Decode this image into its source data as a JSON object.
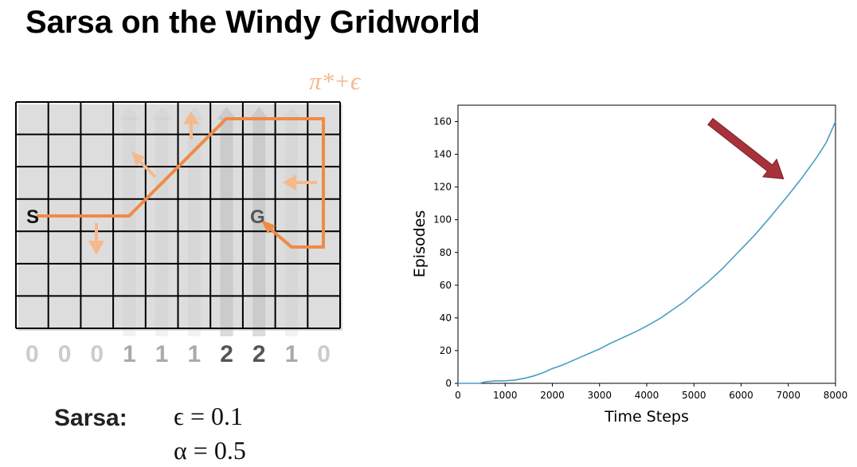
{
  "title": "Sarsa on the Windy Gridworld",
  "gridworld": {
    "columns": 10,
    "rows": 7,
    "wind": [
      0,
      0,
      0,
      1,
      1,
      1,
      2,
      2,
      1,
      0
    ],
    "start_label": "S",
    "goal_label": "G",
    "policy_label": "π*+ϵ",
    "colors": {
      "path": "#f08a45",
      "arrow": "#f5b98d",
      "wind_strong": "#555555",
      "wind_weak": "#aaaaaa",
      "wind_none": "#cccccc"
    }
  },
  "algorithm": {
    "name": "Sarsa:",
    "epsilon": "ϵ = 0.1",
    "alpha": "α = 0.5"
  },
  "chart_data": {
    "type": "line",
    "xlabel": "Time Steps",
    "ylabel": "Episodes",
    "xlim": [
      0,
      8000
    ],
    "ylim": [
      0,
      170
    ],
    "xticks": [
      0,
      1000,
      2000,
      3000,
      4000,
      5000,
      6000,
      7000,
      8000
    ],
    "yticks": [
      0,
      20,
      40,
      60,
      80,
      100,
      120,
      140,
      160
    ],
    "grid": false,
    "series": [
      {
        "color": "#4a9dc4",
        "x": [
          0,
          300,
          450,
          600,
          800,
          1000,
          1200,
          1400,
          1600,
          1800,
          2000,
          2200,
          2400,
          2600,
          2800,
          3000,
          3200,
          3500,
          3800,
          4000,
          4300,
          4600,
          4800,
          5000,
          5300,
          5600,
          5800,
          6000,
          6300,
          6600,
          6800,
          7000,
          7300,
          7600,
          7800,
          8000
        ],
        "y": [
          0,
          0,
          0,
          1,
          1.5,
          1.5,
          2,
          3,
          4.5,
          6.5,
          9,
          11,
          13.5,
          16,
          18.5,
          21,
          24,
          28,
          32,
          35,
          40,
          46,
          50,
          55,
          62,
          70,
          76,
          82,
          91,
          101,
          108,
          115,
          126,
          138,
          147,
          160
        ]
      }
    ],
    "annotation": {
      "type": "arrow",
      "color": "#a8323a",
      "from": [
        5350,
        160
      ],
      "to": [
        6900,
        125
      ]
    }
  }
}
